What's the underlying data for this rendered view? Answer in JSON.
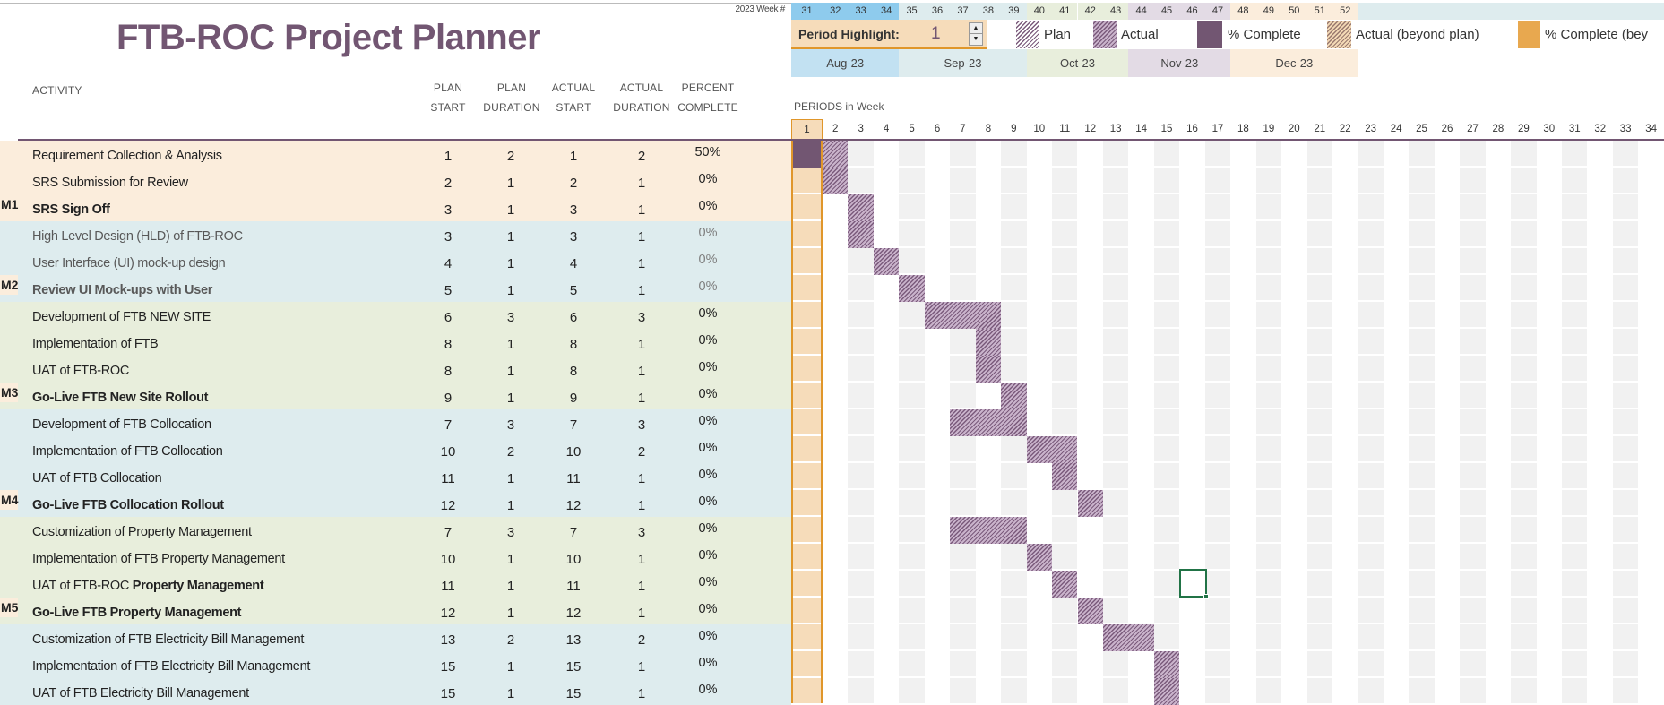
{
  "title": "FTB-ROC Project Planner",
  "week_label": "2023 Week #",
  "headers": {
    "activity": "ACTIVITY",
    "plan_start": [
      "PLAN",
      "START"
    ],
    "plan_duration": [
      "PLAN",
      "DURATION"
    ],
    "actual_start": [
      "ACTUAL",
      "START"
    ],
    "actual_duration": [
      "ACTUAL",
      "DURATION"
    ],
    "percent_complete": [
      "PERCENT",
      "COMPLETE"
    ]
  },
  "period_highlight": {
    "label": "Period Highlight:",
    "value": "1"
  },
  "legend": [
    {
      "label": "Plan",
      "style": "plan"
    },
    {
      "label": "Actual",
      "style": "actual"
    },
    {
      "label": "% Complete",
      "style": "complete",
      "color": "#725672"
    },
    {
      "label": "Actual (beyond plan)",
      "style": "beyond"
    },
    {
      "label": "% Complete (bey",
      "style": "complete-beyond",
      "color": "#e8a84f"
    }
  ],
  "weeks": [
    31,
    32,
    33,
    34,
    35,
    36,
    37,
    38,
    39,
    40,
    41,
    42,
    43,
    44,
    45,
    46,
    47,
    48,
    49,
    50,
    51,
    52
  ],
  "months": [
    {
      "label": "Aug-23",
      "span": 4,
      "color": "#c2e1f2",
      "week_color": "#8ecbed"
    },
    {
      "label": "Sep-23",
      "span": 5,
      "color": "#deecee",
      "week_color": "#deecee"
    },
    {
      "label": "Oct-23",
      "span": 4,
      "color": "#e8eedc",
      "week_color": "#e8eedc"
    },
    {
      "label": "Nov-23",
      "span": 4,
      "color": "#e3dbe5",
      "week_color": "#e3dbe5"
    },
    {
      "label": "Dec-23",
      "span": 5,
      "color": "#fbeddc",
      "week_color": "#fbeddc"
    }
  ],
  "periods_label": "PERIODS in Week",
  "period_count": 34,
  "highlight_period": 1,
  "colors": {
    "accent": "#725672",
    "highlight": "#f6dcba",
    "highlight_border": "#e0962a",
    "peach": "#fbeddc",
    "blue": "#deecee",
    "green": "#e8eedc"
  },
  "rows": [
    {
      "milestone": "",
      "activity": "Requirement Collection & Analysis",
      "plan_start": 1,
      "plan_duration": 2,
      "actual_start": 1,
      "actual_duration": 2,
      "percent": "50%",
      "group": "peach"
    },
    {
      "milestone": "",
      "activity": "SRS Submission for Review",
      "plan_start": 2,
      "plan_duration": 1,
      "actual_start": 2,
      "actual_duration": 1,
      "percent": "0%",
      "group": "peach"
    },
    {
      "milestone": "M1",
      "activity": "SRS Sign Off",
      "bold": true,
      "plan_start": 3,
      "plan_duration": 1,
      "actual_start": 3,
      "actual_duration": 1,
      "percent": "0%",
      "group": "peach"
    },
    {
      "milestone": "",
      "activity": "High Level Design (HLD) of FTB-ROC",
      "muted": true,
      "plan_start": 3,
      "plan_duration": 1,
      "actual_start": 3,
      "actual_duration": 1,
      "percent": "0%",
      "group": "blue"
    },
    {
      "milestone": "",
      "activity": "User Interface (UI) mock-up design",
      "muted": true,
      "plan_start": 4,
      "plan_duration": 1,
      "actual_start": 4,
      "actual_duration": 1,
      "percent": "0%",
      "group": "blue"
    },
    {
      "milestone": "M2",
      "activity": "Review UI Mock-ups with User",
      "bold": true,
      "muted": true,
      "plan_start": 5,
      "plan_duration": 1,
      "actual_start": 5,
      "actual_duration": 1,
      "percent": "0%",
      "group": "blue"
    },
    {
      "milestone": "",
      "activity": "Development of FTB NEW SITE",
      "plan_start": 6,
      "plan_duration": 3,
      "actual_start": 6,
      "actual_duration": 3,
      "percent": "0%",
      "group": "green"
    },
    {
      "milestone": "",
      "activity": "Implementation of FTB",
      "plan_start": 8,
      "plan_duration": 1,
      "actual_start": 8,
      "actual_duration": 1,
      "percent": "0%",
      "group": "green"
    },
    {
      "milestone": "",
      "activity": "UAT of FTB-ROC",
      "plan_start": 8,
      "plan_duration": 1,
      "actual_start": 8,
      "actual_duration": 1,
      "percent": "0%",
      "group": "green"
    },
    {
      "milestone": "M3",
      "activity": "Go-Live FTB New Site Rollout",
      "bold": true,
      "plan_start": 9,
      "plan_duration": 1,
      "actual_start": 9,
      "actual_duration": 1,
      "percent": "0%",
      "group": "green"
    },
    {
      "milestone": "",
      "activity": "Development of FTB Collocation",
      "plan_start": 7,
      "plan_duration": 3,
      "actual_start": 7,
      "actual_duration": 3,
      "percent": "0%",
      "group": "blue"
    },
    {
      "milestone": "",
      "activity": "Implementation of FTB Collocation",
      "plan_start": 10,
      "plan_duration": 2,
      "actual_start": 10,
      "actual_duration": 2,
      "percent": "0%",
      "group": "blue"
    },
    {
      "milestone": "",
      "activity": "UAT of FTB Collocation",
      "plan_start": 11,
      "plan_duration": 1,
      "actual_start": 11,
      "actual_duration": 1,
      "percent": "0%",
      "group": "blue"
    },
    {
      "milestone": "M4",
      "activity": "Go-Live FTB Collocation Rollout",
      "bold": true,
      "plan_start": 12,
      "plan_duration": 1,
      "actual_start": 12,
      "actual_duration": 1,
      "percent": "0%",
      "group": "blue"
    },
    {
      "milestone": "",
      "activity": "Customization of Property Management",
      "plan_start": 7,
      "plan_duration": 3,
      "actual_start": 7,
      "actual_duration": 3,
      "percent": "0%",
      "group": "green"
    },
    {
      "milestone": "",
      "activity": "Implementation of FTB Property Management",
      "plan_start": 10,
      "plan_duration": 1,
      "actual_start": 10,
      "actual_duration": 1,
      "percent": "0%",
      "group": "green"
    },
    {
      "milestone": "",
      "activity": "UAT of FTB-ROC ",
      "activity_bold": "Property Management",
      "plan_start": 11,
      "plan_duration": 1,
      "actual_start": 11,
      "actual_duration": 1,
      "percent": "0%",
      "group": "green"
    },
    {
      "milestone": "M5",
      "activity": "Go-Live FTB Property Management",
      "bold": true,
      "plan_start": 12,
      "plan_duration": 1,
      "actual_start": 12,
      "actual_duration": 1,
      "percent": "0%",
      "group": "green"
    },
    {
      "milestone": "",
      "activity": "Customization of FTB Electricity Bill Management",
      "plan_start": 13,
      "plan_duration": 2,
      "actual_start": 13,
      "actual_duration": 2,
      "percent": "0%",
      "group": "blue"
    },
    {
      "milestone": "",
      "activity": "Implementation of FTB Electricity Bill Management",
      "plan_start": 15,
      "plan_duration": 1,
      "actual_start": 15,
      "actual_duration": 1,
      "percent": "0%",
      "group": "blue"
    },
    {
      "milestone": "",
      "activity": "UAT of FTB Electricity Bill Management",
      "plan_start": 15,
      "plan_duration": 1,
      "actual_start": 15,
      "actual_duration": 1,
      "percent": "0%",
      "group": "blue"
    }
  ],
  "selected_cell": {
    "row": 17,
    "period": 16
  }
}
